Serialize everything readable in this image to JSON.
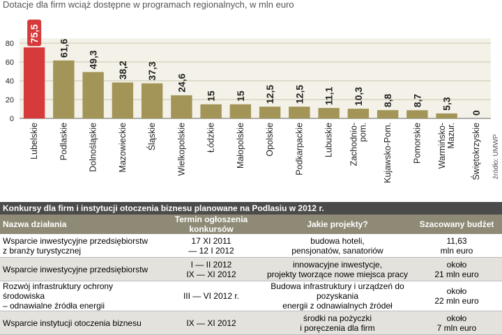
{
  "chart_data": {
    "type": "bar",
    "title": "Dotacje dla firm wciąż dostępne w programach regionalnych, w mln euro",
    "source": "źródło: UMWP",
    "categories": [
      "Lubelskie",
      "Podlaskie",
      "Dolnośląskie",
      "Mazowieckie",
      "Śląskie",
      "Wielkopolskie",
      "Łódzkie",
      "Małopolskie",
      "Opolskie",
      "Podkarpackie",
      "Lubuskie",
      "Zachodnio-\npom.",
      "Kujawsko-Pom.",
      "Pomorskie",
      "Warmińsko-\nMazur.",
      "Świętokrzyskie"
    ],
    "values": [
      75.5,
      61.6,
      49.3,
      38.2,
      37.3,
      24.6,
      15,
      15,
      12.5,
      12.5,
      11.1,
      10.3,
      8.8,
      8.7,
      5.3,
      0
    ],
    "value_labels": [
      "75,5",
      "61,6",
      "49,3",
      "38,2",
      "37,3",
      "24,6",
      "15",
      "15",
      "12,5",
      "12,5",
      "11,1",
      "10,3",
      "8,8",
      "8,7",
      "5,3",
      "0"
    ],
    "colors": [
      "#d63a3a",
      "#a39557",
      "#a39557",
      "#a39557",
      "#a39557",
      "#a39557",
      "#a39557",
      "#a39557",
      "#a39557",
      "#a39557",
      "#a39557",
      "#a39557",
      "#a39557",
      "#a39557",
      "#a39557",
      "#a39557"
    ],
    "highlight_color": "#d63a3a",
    "ylim": [
      0,
      80
    ],
    "yticks": [
      0,
      20,
      40,
      60,
      80
    ],
    "grid": true
  },
  "table": {
    "title": "Konkursy dla firm i instytucji otoczenia biznesu planowane na Podlasiu w 2012 r.",
    "header": [
      "Nazwa działania",
      "Termin ogłoszenia konkursów",
      "Jakie projekty?",
      "Szacowany budżet"
    ],
    "rows": [
      [
        "Wsparcie inwestycyjne przedsiębiorstw\nz branży turystycznej",
        "17 XI 2011\n— 12 I 2012",
        "budowa hoteli,\npensjonatów, sanatoriów",
        "11,63\nmln euro"
      ],
      [
        "Wsparcie inwestycyjne przedsiębiorstw",
        "I — II  2012\nIX — XI 2012",
        "innowacyjne inwestycje,\nprojekty tworzące nowe miejsca pracy",
        "około\n21 mln euro"
      ],
      [
        "Rozwój infrastruktury ochrony środowiska\n– odnawialne źródła energii",
        "III — VI 2012 r.",
        "Budowa infrastruktury i urządzeń  do pozyskania\nenergii z odnawialnych źródeł",
        "około\n22 mln euro"
      ],
      [
        "Wsparcie instytucji otoczenia biznesu",
        "IX — XI 2012",
        "środki na pożyczki\ni poręczenia dla firm",
        "około\n7 mln euro"
      ]
    ]
  }
}
